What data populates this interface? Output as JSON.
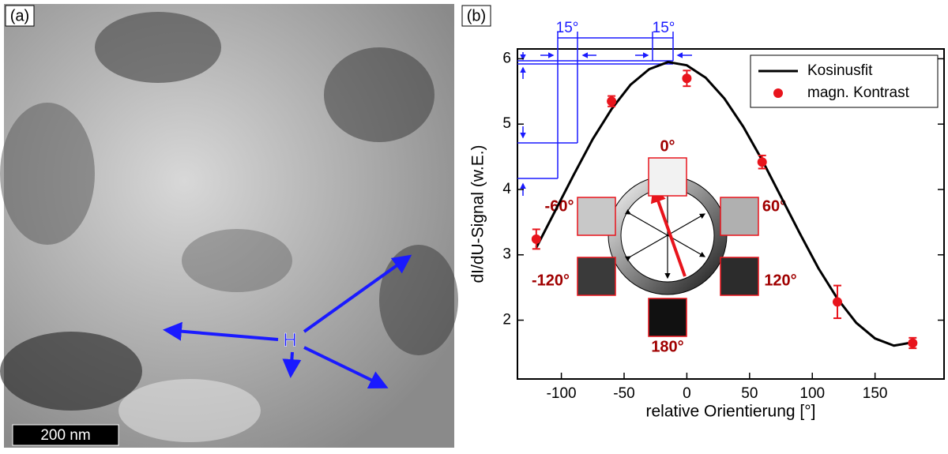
{
  "panel_a": {
    "label": "(a)",
    "marker": "H",
    "scale_bar": "200 nm"
  },
  "chart_data": {
    "type": "scatter",
    "panel_label": "(b)",
    "x_label": "relative Orientierung [°]",
    "y_label": "dI/dU-Signal (w.E.)",
    "xlim": [
      -135,
      205
    ],
    "ylim": [
      1.1,
      6.15
    ],
    "xticks": [
      -100,
      -50,
      0,
      50,
      100,
      150
    ],
    "yticks": [
      2,
      3,
      4,
      5,
      6
    ],
    "legend": "upper right",
    "annotations": [
      "15°",
      "15°"
    ],
    "inset_labels": [
      "0°",
      "60°",
      "120°",
      "180°",
      "-120°",
      "-60°"
    ],
    "series": [
      {
        "name": "Kosinusfit",
        "type": "line",
        "color": "#000000",
        "x": [
          -120,
          -105,
          -90,
          -75,
          -60,
          -45,
          -30,
          -15,
          0,
          15,
          30,
          45,
          60,
          75,
          90,
          105,
          120,
          135,
          150,
          165,
          180
        ],
        "values": [
          3.11,
          3.67,
          4.23,
          4.77,
          5.23,
          5.6,
          5.84,
          5.95,
          5.9,
          5.71,
          5.39,
          4.96,
          4.45,
          3.89,
          3.33,
          2.79,
          2.33,
          1.96,
          1.72,
          1.61,
          1.66
        ]
      },
      {
        "name": "magn. Kontrast",
        "type": "scatter",
        "color": "#e8141c",
        "x": [
          -120,
          -60,
          0,
          60,
          120,
          180
        ],
        "values": [
          3.24,
          5.35,
          5.7,
          4.42,
          2.28,
          1.65
        ],
        "errors": [
          0.15,
          0.08,
          0.12,
          0.1,
          0.25,
          0.08
        ]
      }
    ]
  }
}
